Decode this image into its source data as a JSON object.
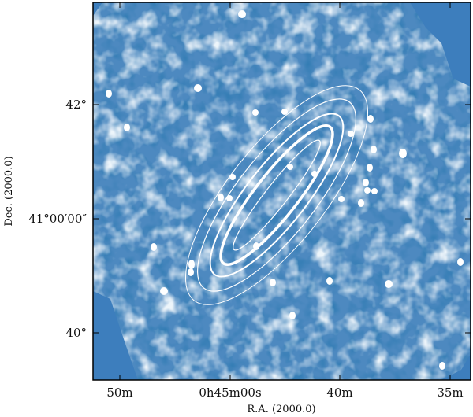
{
  "figure": {
    "xlabel": "R.A. (2000.0)",
    "ylabel": "Dec. (2000.0)",
    "x_ticks": [
      {
        "id": "ra-50m",
        "label": "50m"
      },
      {
        "id": "ra-45m",
        "label": "0h45m00s"
      },
      {
        "id": "ra-40m",
        "label": "40m"
      },
      {
        "id": "ra-35m",
        "label": "35m"
      }
    ],
    "y_ticks": [
      {
        "id": "dec-42",
        "label": "42°"
      },
      {
        "id": "dec-41",
        "label": "41°00′00″"
      },
      {
        "id": "dec-40",
        "label": "40°"
      }
    ],
    "colors": {
      "map_dark": "#0b3d79",
      "map_mid": "#3f7fb7",
      "map_light": "#d9e8f5",
      "contour": "#ffffff",
      "background_fill": "#3d7ebd"
    }
  }
}
